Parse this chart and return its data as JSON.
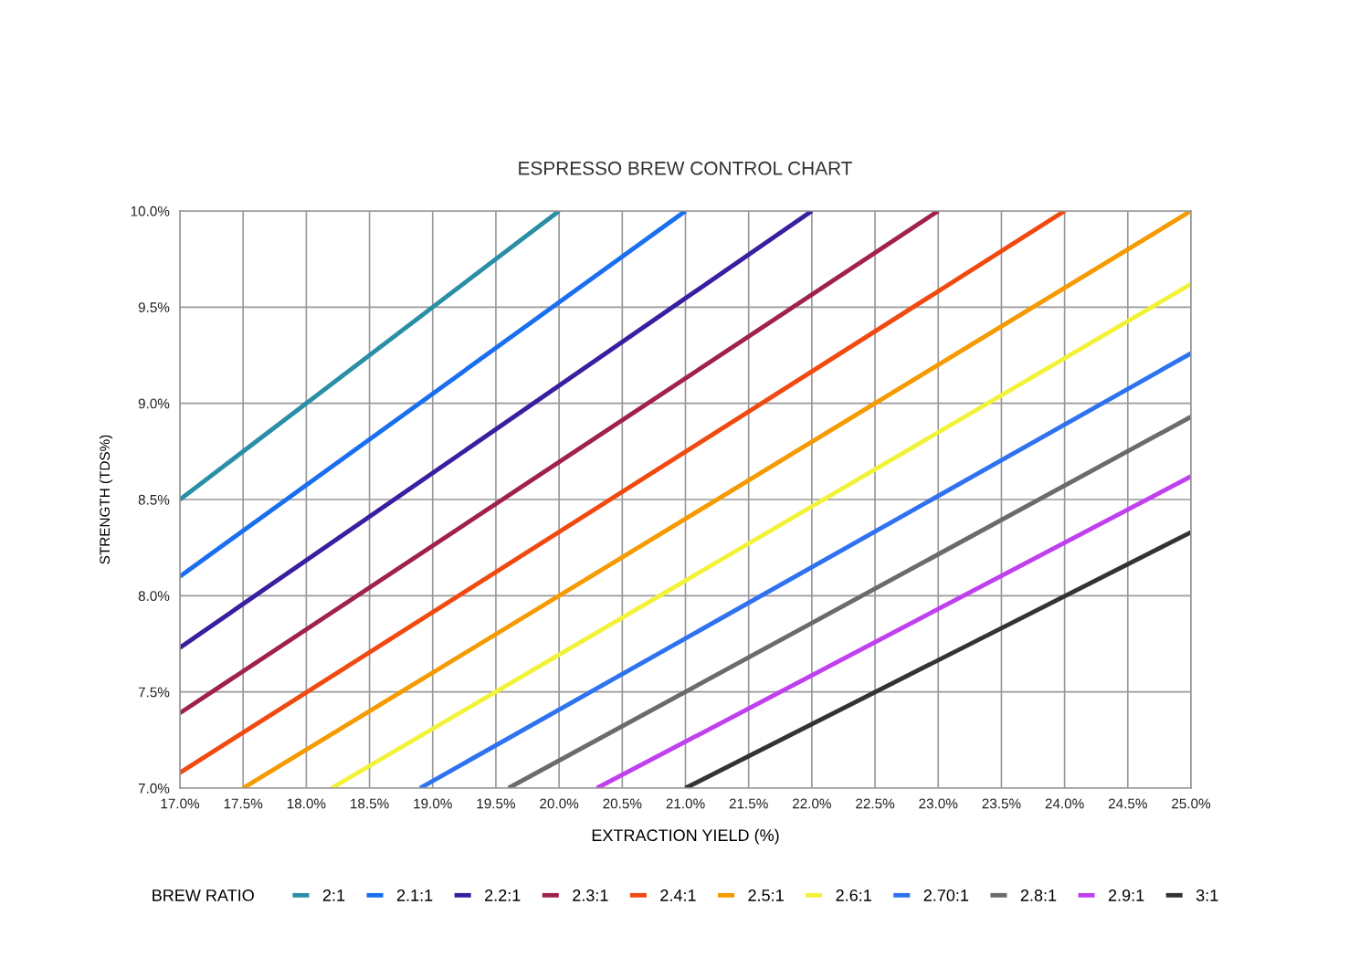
{
  "chart_data": {
    "type": "line",
    "title": "ESPRESSO BREW CONTROL CHART",
    "xlabel": "EXTRACTION YIELD (%)",
    "ylabel": "STRENGTH (TDS%)",
    "legend_title": "BREW RATIO",
    "legend": "bottom",
    "grid": true,
    "marker": "none",
    "line_style": "solid",
    "xlim": [
      17,
      25
    ],
    "ylim": [
      7,
      10
    ],
    "xticks": [
      {
        "value": 17,
        "label": "17.0%"
      },
      {
        "value": 17.5,
        "label": "17.5%"
      },
      {
        "value": 18,
        "label": "18.0%"
      },
      {
        "value": 18.5,
        "label": "18.5%"
      },
      {
        "value": 19,
        "label": "19.0%"
      },
      {
        "value": 19.5,
        "label": "19.5%"
      },
      {
        "value": 20,
        "label": "20.0%"
      },
      {
        "value": 20.5,
        "label": "20.5%"
      },
      {
        "value": 21,
        "label": "21.0%"
      },
      {
        "value": 21.5,
        "label": "21.5%"
      },
      {
        "value": 22,
        "label": "22.0%"
      },
      {
        "value": 22.5,
        "label": "22.5%"
      },
      {
        "value": 23,
        "label": "23.0%"
      },
      {
        "value": 23.5,
        "label": "23.5%"
      },
      {
        "value": 24,
        "label": "24.0%"
      },
      {
        "value": 24.5,
        "label": "24.5%"
      },
      {
        "value": 25,
        "label": "25.0%"
      }
    ],
    "yticks": [
      {
        "value": 7,
        "label": "7.0%"
      },
      {
        "value": 7.5,
        "label": "7.5%"
      },
      {
        "value": 8,
        "label": "8.0%"
      },
      {
        "value": 8.5,
        "label": "8.5%"
      },
      {
        "value": 9,
        "label": "9.0%"
      },
      {
        "value": 9.5,
        "label": "9.5%"
      },
      {
        "value": 10,
        "label": "10.0%"
      }
    ],
    "series": [
      {
        "name": "2:1",
        "color": "#2a8fa6",
        "x": [
          17,
          20
        ],
        "values": [
          8.5,
          10
        ]
      },
      {
        "name": "2.1:1",
        "color": "#1a6ef0",
        "x": [
          17,
          21
        ],
        "values": [
          8.1,
          10
        ]
      },
      {
        "name": "2.2:1",
        "color": "#3a1ea0",
        "x": [
          17,
          22
        ],
        "values": [
          7.73,
          10
        ]
      },
      {
        "name": "2.3:1",
        "color": "#a0204e",
        "x": [
          17,
          23
        ],
        "values": [
          7.39,
          10
        ]
      },
      {
        "name": "2.4:1",
        "color": "#f04a10",
        "x": [
          17,
          24
        ],
        "values": [
          7.08,
          10
        ]
      },
      {
        "name": "2.5:1",
        "color": "#f59a00",
        "x": [
          17.5,
          25
        ],
        "values": [
          7,
          10
        ]
      },
      {
        "name": "2.6:1",
        "color": "#f2f23a",
        "x": [
          18.2,
          25
        ],
        "values": [
          7,
          9.62
        ]
      },
      {
        "name": "2.70:1",
        "color": "#2f72f0",
        "x": [
          18.9,
          25
        ],
        "values": [
          7,
          9.26
        ]
      },
      {
        "name": "2.8:1",
        "color": "#6b6b6b",
        "x": [
          19.6,
          25
        ],
        "values": [
          7,
          8.93
        ]
      },
      {
        "name": "2.9:1",
        "color": "#c040f0",
        "x": [
          20.3,
          25
        ],
        "values": [
          7,
          8.62
        ]
      },
      {
        "name": "3:1",
        "color": "#333333",
        "x": [
          21,
          25
        ],
        "values": [
          7,
          8.33
        ]
      }
    ]
  }
}
